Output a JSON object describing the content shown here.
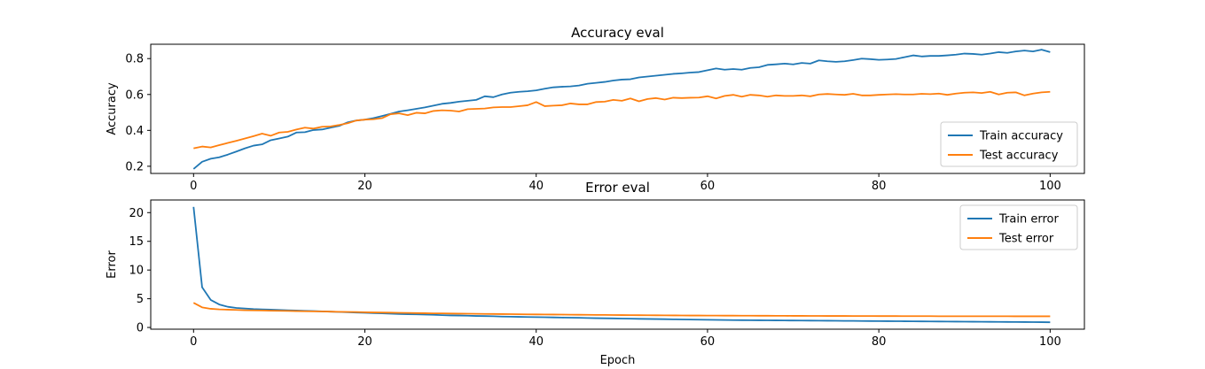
{
  "chart_data": [
    {
      "type": "line",
      "title": "Accuracy eval",
      "xlabel": "",
      "ylabel": "Accuracy",
      "xlim": [
        -5,
        104
      ],
      "ylim": [
        0.16,
        0.88
      ],
      "xticks": [
        0,
        20,
        40,
        60,
        80,
        100
      ],
      "yticks": [
        0.2,
        0.4,
        0.6,
        0.8
      ],
      "ytick_labels": [
        "0.2",
        "0.4",
        "0.6",
        "0.8"
      ],
      "grid": false,
      "legend": "lower-right",
      "series": [
        {
          "name": "Train accuracy",
          "color": "#1f77b4",
          "values": [
            0.185,
            0.225,
            0.242,
            0.25,
            0.265,
            0.282,
            0.3,
            0.315,
            0.322,
            0.345,
            0.355,
            0.365,
            0.388,
            0.39,
            0.402,
            0.405,
            0.415,
            0.425,
            0.445,
            0.455,
            0.46,
            0.468,
            0.48,
            0.492,
            0.505,
            0.512,
            0.52,
            0.528,
            0.538,
            0.548,
            0.553,
            0.56,
            0.565,
            0.57,
            0.59,
            0.585,
            0.6,
            0.61,
            0.615,
            0.618,
            0.623,
            0.632,
            0.64,
            0.643,
            0.645,
            0.65,
            0.66,
            0.665,
            0.67,
            0.678,
            0.683,
            0.685,
            0.695,
            0.7,
            0.705,
            0.71,
            0.715,
            0.718,
            0.722,
            0.725,
            0.735,
            0.745,
            0.738,
            0.742,
            0.738,
            0.748,
            0.752,
            0.765,
            0.768,
            0.772,
            0.768,
            0.776,
            0.772,
            0.79,
            0.785,
            0.782,
            0.785,
            0.792,
            0.8,
            0.797,
            0.793,
            0.795,
            0.798,
            0.808,
            0.818,
            0.812,
            0.815,
            0.815,
            0.818,
            0.822,
            0.828,
            0.826,
            0.822,
            0.828,
            0.836,
            0.832,
            0.84,
            0.845,
            0.84,
            0.85,
            0.836
          ]
        },
        {
          "name": "Test accuracy",
          "color": "#ff7f0e",
          "values": [
            0.3,
            0.31,
            0.305,
            0.318,
            0.33,
            0.342,
            0.355,
            0.368,
            0.382,
            0.37,
            0.388,
            0.392,
            0.405,
            0.415,
            0.41,
            0.42,
            0.422,
            0.43,
            0.44,
            0.455,
            0.46,
            0.462,
            0.468,
            0.49,
            0.495,
            0.485,
            0.498,
            0.495,
            0.508,
            0.512,
            0.51,
            0.505,
            0.518,
            0.52,
            0.522,
            0.528,
            0.53,
            0.53,
            0.535,
            0.54,
            0.558,
            0.535,
            0.538,
            0.54,
            0.55,
            0.545,
            0.545,
            0.558,
            0.56,
            0.57,
            0.565,
            0.578,
            0.562,
            0.575,
            0.58,
            0.572,
            0.582,
            0.58,
            0.582,
            0.583,
            0.59,
            0.578,
            0.592,
            0.598,
            0.588,
            0.598,
            0.595,
            0.588,
            0.595,
            0.592,
            0.592,
            0.595,
            0.59,
            0.6,
            0.603,
            0.6,
            0.598,
            0.604,
            0.595,
            0.595,
            0.598,
            0.6,
            0.602,
            0.6,
            0.6,
            0.604,
            0.602,
            0.605,
            0.598,
            0.605,
            0.61,
            0.612,
            0.608,
            0.615,
            0.6,
            0.61,
            0.612,
            0.595,
            0.605,
            0.612,
            0.615
          ]
        }
      ]
    },
    {
      "type": "line",
      "title": "Error eval",
      "xlabel": "Epoch",
      "ylabel": "Error",
      "xlim": [
        -5,
        104
      ],
      "ylim": [
        -0.3,
        22.2
      ],
      "xticks": [
        0,
        20,
        40,
        60,
        80,
        100
      ],
      "yticks": [
        0,
        5,
        10,
        15,
        20
      ],
      "ytick_labels": [
        "0",
        "5",
        "10",
        "15",
        "20"
      ],
      "grid": false,
      "legend": "top-right",
      "series": [
        {
          "name": "Train error",
          "color": "#1f77b4",
          "values": [
            21.0,
            7.0,
            4.8,
            4.0,
            3.6,
            3.4,
            3.3,
            3.2,
            3.15,
            3.1,
            3.05,
            3.0,
            2.95,
            2.9,
            2.85,
            2.8,
            2.75,
            2.7,
            2.65,
            2.6,
            2.55,
            2.5,
            2.45,
            2.4,
            2.35,
            2.3,
            2.28,
            2.25,
            2.2,
            2.15,
            2.1,
            2.08,
            2.05,
            2.0,
            1.98,
            1.95,
            1.9,
            1.88,
            1.85,
            1.82,
            1.8,
            1.78,
            1.75,
            1.72,
            1.7,
            1.68,
            1.65,
            1.62,
            1.6,
            1.58,
            1.55,
            1.53,
            1.5,
            1.48,
            1.46,
            1.44,
            1.42,
            1.4,
            1.38,
            1.36,
            1.34,
            1.32,
            1.3,
            1.28,
            1.27,
            1.26,
            1.25,
            1.24,
            1.23,
            1.22,
            1.21,
            1.2,
            1.19,
            1.18,
            1.17,
            1.16,
            1.15,
            1.14,
            1.13,
            1.12,
            1.11,
            1.1,
            1.09,
            1.08,
            1.07,
            1.06,
            1.05,
            1.04,
            1.03,
            1.02,
            1.01,
            1.0,
            0.99,
            0.98,
            0.97,
            0.96,
            0.95,
            0.94,
            0.93,
            0.92,
            0.9
          ]
        },
        {
          "name": "Test error",
          "color": "#ff7f0e",
          "values": [
            4.3,
            3.5,
            3.25,
            3.15,
            3.1,
            3.05,
            3.0,
            2.98,
            2.95,
            2.92,
            2.9,
            2.88,
            2.85,
            2.82,
            2.8,
            2.78,
            2.75,
            2.72,
            2.7,
            2.68,
            2.65,
            2.62,
            2.6,
            2.58,
            2.55,
            2.53,
            2.5,
            2.48,
            2.46,
            2.45,
            2.43,
            2.41,
            2.4,
            2.38,
            2.36,
            2.35,
            2.33,
            2.32,
            2.3,
            2.28,
            2.27,
            2.26,
            2.25,
            2.24,
            2.22,
            2.21,
            2.2,
            2.19,
            2.18,
            2.17,
            2.16,
            2.15,
            2.14,
            2.13,
            2.12,
            2.11,
            2.1,
            2.09,
            2.08,
            2.08,
            2.07,
            2.07,
            2.06,
            2.06,
            2.05,
            2.05,
            2.04,
            2.04,
            2.03,
            2.03,
            2.02,
            2.02,
            2.01,
            2.01,
            2.0,
            2.0,
            2.0,
            1.99,
            1.99,
            1.99,
            1.98,
            1.98,
            1.98,
            1.97,
            1.97,
            1.97,
            1.97,
            1.96,
            1.96,
            1.96,
            1.96,
            1.95,
            1.95,
            1.95,
            1.95,
            1.95,
            1.94,
            1.94,
            1.94,
            1.94,
            1.94
          ]
        }
      ]
    }
  ]
}
